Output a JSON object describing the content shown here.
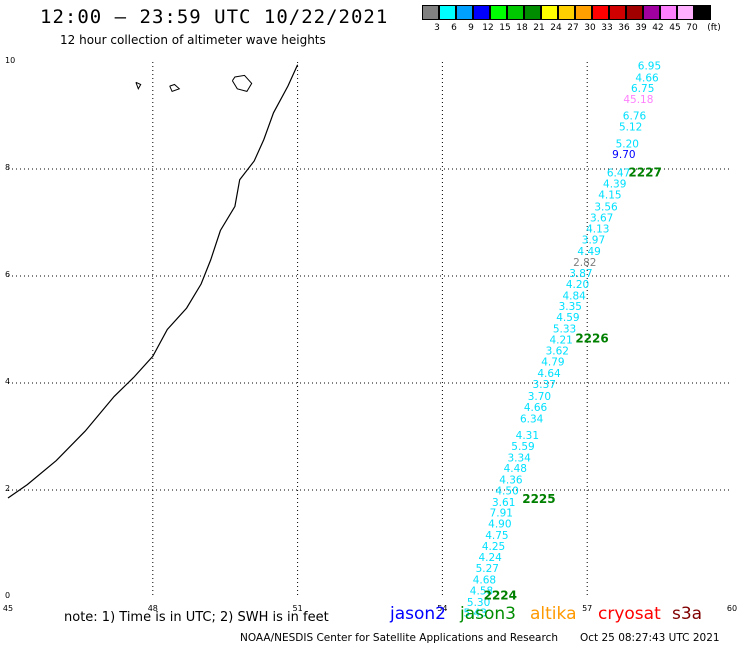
{
  "title": "12:00 – 23:59 UTC 10/22/2021",
  "subtitle": "12 hour collection of altimeter wave heights",
  "colorbar": {
    "unit": "(ft)",
    "swatches": [
      {
        "color": "#808080",
        "label": "3"
      },
      {
        "color": "#00ffff",
        "label": "6"
      },
      {
        "color": "#00a0ff",
        "label": "9"
      },
      {
        "color": "#0000ff",
        "label": "12"
      },
      {
        "color": "#00ff00",
        "label": "15"
      },
      {
        "color": "#00c800",
        "label": "18"
      },
      {
        "color": "#008c00",
        "label": "21"
      },
      {
        "color": "#ffff00",
        "label": "24"
      },
      {
        "color": "#ffd000",
        "label": "27"
      },
      {
        "color": "#ffa000",
        "label": "30"
      },
      {
        "color": "#ff0000",
        "label": "33"
      },
      {
        "color": "#d00000",
        "label": "36"
      },
      {
        "color": "#a00000",
        "label": "39"
      },
      {
        "color": "#a000a0",
        "label": "42"
      },
      {
        "color": "#ff80ff",
        "label": "45"
      },
      {
        "color": "#ffb0ff",
        "label": "70"
      },
      {
        "color": "#000000",
        "label": ""
      }
    ]
  },
  "axes": {
    "x_ticks": [
      "45",
      "48",
      "51",
      "54",
      "57",
      "60"
    ],
    "y_ticks": [
      "0",
      "2",
      "4",
      "6",
      "8",
      "10"
    ],
    "xlim": [
      45,
      60
    ],
    "ylim": [
      0,
      10
    ]
  },
  "tracks": [
    {
      "label": "2224",
      "x": 55.2,
      "y": 0.03
    },
    {
      "label": "2225",
      "x": 56.0,
      "y": 1.83
    },
    {
      "label": "2226",
      "x": 57.1,
      "y": 4.83
    },
    {
      "label": "2227",
      "x": 58.2,
      "y": 7.93
    }
  ],
  "colors": {
    "cyan": "#00e0ff",
    "gray": "#808080",
    "blue": "#0000ff",
    "pink": "#ff80ff",
    "dgreen": "#008000",
    "coast": "#000000",
    "grid": "#000000"
  },
  "points": [
    {
      "v": "6.95",
      "x": 58.29,
      "y": 9.93,
      "c": "cyan"
    },
    {
      "v": "4.66",
      "x": 58.24,
      "y": 9.71,
      "c": "cyan"
    },
    {
      "v": "6.75",
      "x": 58.15,
      "y": 9.51,
      "c": "cyan"
    },
    {
      "v": "45.18",
      "x": 58.06,
      "y": 9.31,
      "c": "pink"
    },
    {
      "v": "6.76",
      "x": 57.98,
      "y": 9.0,
      "c": "cyan"
    },
    {
      "v": "5.12",
      "x": 57.9,
      "y": 8.79,
      "c": "cyan"
    },
    {
      "v": "5.20",
      "x": 57.83,
      "y": 8.48,
      "c": "cyan"
    },
    {
      "v": "9.70",
      "x": 57.76,
      "y": 8.28,
      "c": "blue"
    },
    {
      "v": "6.47",
      "x": 57.65,
      "y": 7.93,
      "c": "cyan"
    },
    {
      "v": "4.39",
      "x": 57.57,
      "y": 7.73,
      "c": "cyan"
    },
    {
      "v": "4.15",
      "x": 57.47,
      "y": 7.52,
      "c": "cyan"
    },
    {
      "v": "3.56",
      "x": 57.39,
      "y": 7.3,
      "c": "cyan"
    },
    {
      "v": "3.67",
      "x": 57.3,
      "y": 7.09,
      "c": "cyan"
    },
    {
      "v": "4.13",
      "x": 57.22,
      "y": 6.89,
      "c": "cyan"
    },
    {
      "v": "3.97",
      "x": 57.13,
      "y": 6.68,
      "c": "cyan"
    },
    {
      "v": "4.49",
      "x": 57.04,
      "y": 6.47,
      "c": "cyan"
    },
    {
      "v": "2.82",
      "x": 56.95,
      "y": 6.26,
      "c": "gray"
    },
    {
      "v": "3.87",
      "x": 56.87,
      "y": 6.06,
      "c": "cyan"
    },
    {
      "v": "4.20",
      "x": 56.8,
      "y": 5.85,
      "c": "cyan"
    },
    {
      "v": "4.84",
      "x": 56.73,
      "y": 5.64,
      "c": "cyan"
    },
    {
      "v": "3.35",
      "x": 56.65,
      "y": 5.44,
      "c": "cyan"
    },
    {
      "v": "4.59",
      "x": 56.6,
      "y": 5.23,
      "c": "cyan"
    },
    {
      "v": "5.33",
      "x": 56.53,
      "y": 5.02,
      "c": "cyan"
    },
    {
      "v": "4.21",
      "x": 56.46,
      "y": 4.81,
      "c": "cyan"
    },
    {
      "v": "3.62",
      "x": 56.38,
      "y": 4.61,
      "c": "cyan"
    },
    {
      "v": "4.79",
      "x": 56.29,
      "y": 4.4,
      "c": "cyan"
    },
    {
      "v": "4.64",
      "x": 56.21,
      "y": 4.19,
      "c": "cyan"
    },
    {
      "v": "3.37",
      "x": 56.11,
      "y": 3.98,
      "c": "cyan"
    },
    {
      "v": "3.70",
      "x": 56.01,
      "y": 3.76,
      "c": "cyan"
    },
    {
      "v": "4.66",
      "x": 55.93,
      "y": 3.55,
      "c": "cyan"
    },
    {
      "v": "6.34",
      "x": 55.85,
      "y": 3.34,
      "c": "cyan"
    },
    {
      "v": "4.31",
      "x": 55.76,
      "y": 3.03,
      "c": "cyan"
    },
    {
      "v": "5.59",
      "x": 55.67,
      "y": 2.82,
      "c": "cyan"
    },
    {
      "v": "3.34",
      "x": 55.59,
      "y": 2.61,
      "c": "cyan"
    },
    {
      "v": "4.48",
      "x": 55.51,
      "y": 2.41,
      "c": "cyan"
    },
    {
      "v": "4.36",
      "x": 55.42,
      "y": 2.2,
      "c": "cyan"
    },
    {
      "v": "4.50",
      "x": 55.34,
      "y": 1.99,
      "c": "cyan"
    },
    {
      "v": "3.61",
      "x": 55.27,
      "y": 1.78,
      "c": "cyan"
    },
    {
      "v": "7.91",
      "x": 55.22,
      "y": 1.58,
      "c": "cyan"
    },
    {
      "v": "4.90",
      "x": 55.19,
      "y": 1.37,
      "c": "cyan"
    },
    {
      "v": "4.75",
      "x": 55.13,
      "y": 1.16,
      "c": "cyan"
    },
    {
      "v": "4.25",
      "x": 55.06,
      "y": 0.95,
      "c": "cyan"
    },
    {
      "v": "4.24",
      "x": 54.99,
      "y": 0.75,
      "c": "cyan"
    },
    {
      "v": "5.27",
      "x": 54.93,
      "y": 0.54,
      "c": "cyan"
    },
    {
      "v": "4.68",
      "x": 54.87,
      "y": 0.33,
      "c": "cyan"
    },
    {
      "v": "4.58",
      "x": 54.81,
      "y": 0.12,
      "c": "cyan"
    },
    {
      "v": "5.30",
      "x": 54.75,
      "y": -0.09,
      "c": "cyan"
    },
    {
      "v": "5.43",
      "x": 54.68,
      "y": -0.29,
      "c": "cyan"
    }
  ],
  "coastline": [
    [
      45.0,
      1.85
    ],
    [
      45.4,
      2.1
    ],
    [
      46.0,
      2.55
    ],
    [
      46.6,
      3.1
    ],
    [
      47.2,
      3.75
    ],
    [
      47.6,
      4.1
    ],
    [
      48.0,
      4.5
    ],
    [
      48.3,
      5.0
    ],
    [
      48.7,
      5.4
    ],
    [
      49.0,
      5.85
    ],
    [
      49.2,
      6.3
    ],
    [
      49.4,
      6.85
    ],
    [
      49.7,
      7.3
    ],
    [
      49.8,
      7.8
    ],
    [
      50.1,
      8.15
    ],
    [
      50.3,
      8.55
    ],
    [
      50.5,
      9.05
    ],
    [
      50.8,
      9.55
    ],
    [
      51.0,
      9.95
    ]
  ],
  "islands": [
    [
      [
        49.65,
        9.65
      ],
      [
        49.75,
        9.5
      ],
      [
        49.95,
        9.45
      ],
      [
        50.05,
        9.6
      ],
      [
        49.9,
        9.75
      ],
      [
        49.7,
        9.72
      ],
      [
        49.65,
        9.65
      ]
    ],
    [
      [
        47.65,
        9.62
      ],
      [
        47.7,
        9.5
      ],
      [
        47.75,
        9.58
      ],
      [
        47.65,
        9.62
      ]
    ],
    [
      [
        48.35,
        9.55
      ],
      [
        48.4,
        9.45
      ],
      [
        48.55,
        9.5
      ],
      [
        48.45,
        9.58
      ],
      [
        48.35,
        9.55
      ]
    ]
  ],
  "legend": [
    {
      "label": "jason2",
      "color": "#0000ff"
    },
    {
      "label": "jason3",
      "color": "#008c00"
    },
    {
      "label": "altika",
      "color": "#ff9900"
    },
    {
      "label": "cryosat",
      "color": "#ff0000"
    },
    {
      "label": "s3a",
      "color": "#800000"
    }
  ],
  "note": "note:  1) Time is in UTC;  2) SWH is in feet",
  "credit": "NOAA/NESDIS Center for Satellite Applications and Research",
  "timestamp": "Oct 25 08:27:43 UTC 2021"
}
